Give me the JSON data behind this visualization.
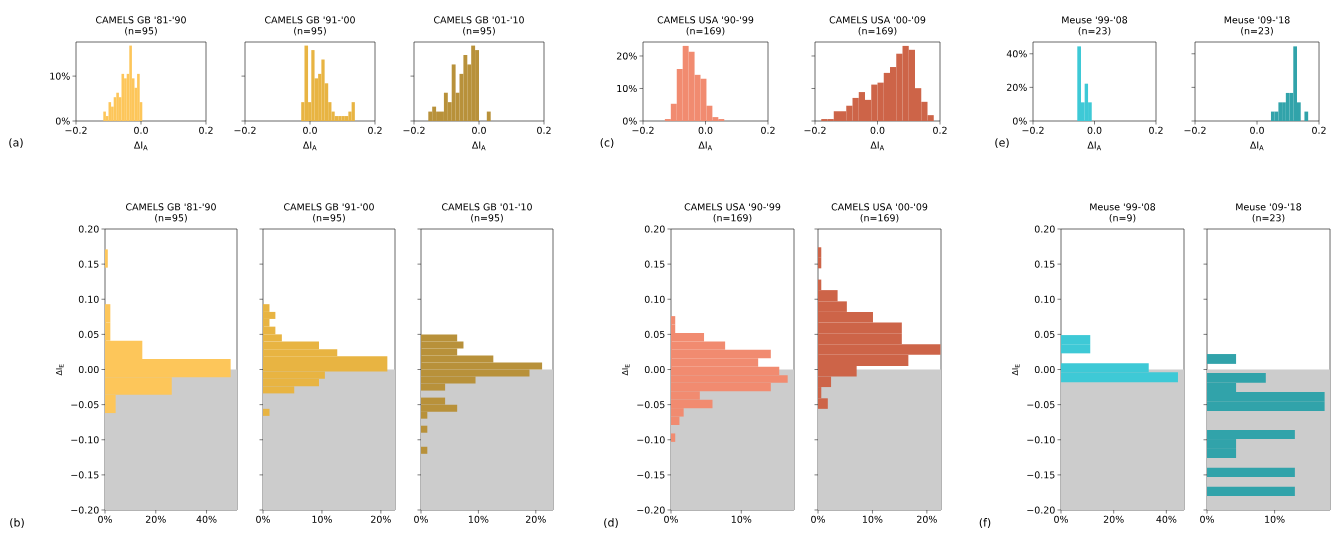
{
  "chart_data": [
    {
      "type": "histogram",
      "title": "CAMELS GB '81-'90",
      "subtitle": "(n=95)",
      "xlabel": "ΔI$_{A}$",
      "annotations": [
        "(a)"
      ],
      "color": "#fdc65a",
      "bins": [
        -0.116,
        -0.108,
        -0.1,
        -0.092,
        -0.084,
        -0.076,
        -0.068,
        -0.06,
        -0.052,
        -0.044,
        -0.036,
        -0.028,
        -0.02,
        -0.012,
        -0.004,
        0.004
      ],
      "values": [
        2.1,
        1.1,
        4.2,
        3.2,
        5.3,
        6.3,
        5.3,
        10.5,
        9.5,
        10.5,
        16.8,
        9.5,
        7.4,
        10.5,
        4.2
      ],
      "xlim": [
        -0.2,
        0.2
      ],
      "ylim": [
        0,
        17.6
      ],
      "xticks": [
        {
          "value": -0.2,
          "label": "−0.2"
        },
        {
          "value": 0,
          "label": "0.0"
        },
        {
          "value": 0.2,
          "label": "0.2"
        }
      ],
      "yticks": [
        {
          "value": 0,
          "label": "0%"
        },
        {
          "value": 10,
          "label": "10%"
        }
      ]
    },
    {
      "type": "histogram",
      "title": "CAMELS GB '91-'00",
      "subtitle": "(n=95)",
      "xlabel": "ΔI$_{A}$",
      "color": "#e8b442",
      "bins": [
        -0.027,
        -0.017,
        -0.006,
        0.004,
        0.014,
        0.025,
        0.035,
        0.045,
        0.056,
        0.066,
        0.076,
        0.087,
        0.097,
        0.107,
        0.118,
        0.128,
        0.138
      ],
      "values": [
        4.2,
        16.8,
        4.2,
        15.8,
        9.5,
        10.5,
        13.7,
        8.4,
        4.2,
        2.1,
        1.1,
        1.1,
        1.1,
        1.1,
        2.1,
        4.2
      ],
      "xlim": [
        -0.2,
        0.2
      ],
      "ylim": [
        0,
        17.6
      ],
      "xticks": [
        {
          "value": -0.2,
          "label": "−0.2"
        },
        {
          "value": 0,
          "label": "0.0"
        },
        {
          "value": 0.2,
          "label": "0.2"
        }
      ],
      "yticks": [
        0,
        10
      ],
      "tick_labels": "x"
    },
    {
      "type": "histogram",
      "title": "CAMELS GB '01-'10",
      "subtitle": "(n=95)",
      "xlabel": "ΔI$_{A}$",
      "color": "#b8913a",
      "bins": [
        -0.156,
        -0.144,
        -0.132,
        -0.12,
        -0.108,
        -0.096,
        -0.084,
        -0.072,
        -0.06,
        -0.048,
        -0.036,
        -0.024,
        -0.012,
        0,
        0.024,
        0.036
      ],
      "values": [
        2.1,
        3.2,
        2.1,
        2.1,
        6.3,
        4.2,
        12.6,
        6.3,
        10.5,
        14.7,
        12.6,
        16.8,
        15.8,
        0,
        2.1
      ],
      "xlim": [
        -0.2,
        0.2
      ],
      "ylim": [
        0,
        17.6
      ],
      "xticks": [
        {
          "value": -0.2,
          "label": "−0.2"
        },
        {
          "value": 0,
          "label": "0.0"
        },
        {
          "value": 0.2,
          "label": "0.2"
        }
      ],
      "yticks": [
        0,
        10
      ],
      "tick_labels": "x"
    },
    {
      "type": "histogram",
      "title": "CAMELS USA '90-'99",
      "subtitle": "(n=169)",
      "xlabel": "ΔI$_{A}$",
      "annotations": [
        "(c)"
      ],
      "color": "#f18b70",
      "bins": [
        -0.13,
        -0.111,
        -0.092,
        -0.073,
        -0.054,
        -0.035,
        -0.016,
        0.003,
        0.022,
        0.041,
        0.06
      ],
      "values": [
        0.6,
        5.3,
        16,
        23.1,
        21.3,
        14.2,
        13,
        4.7,
        1.2,
        0.6
      ],
      "xlim": [
        -0.2,
        0.2
      ],
      "ylim": [
        0,
        24.3
      ],
      "xticks": [
        {
          "value": -0.2,
          "label": "−0.2"
        },
        {
          "value": 0,
          "label": "0.0"
        },
        {
          "value": 0.2,
          "label": "0.2"
        }
      ],
      "yticks": [
        {
          "value": 0,
          "label": "0%"
        },
        {
          "value": 10,
          "label": "10%"
        },
        {
          "value": 20,
          "label": "20%"
        }
      ]
    },
    {
      "type": "histogram",
      "title": "CAMELS USA '00-'09",
      "subtitle": "(n=169)",
      "xlabel": "ΔI$_{A}$",
      "color": "#cd6448",
      "bins": [
        -0.18,
        -0.16,
        -0.14,
        -0.12,
        -0.1,
        -0.08,
        -0.06,
        -0.04,
        -0.02,
        0,
        0.02,
        0.04,
        0.06,
        0.08,
        0.1,
        0.12,
        0.14,
        0.16,
        0.18
      ],
      "values": [
        0.6,
        0.6,
        3,
        3,
        4.7,
        7.1,
        8.9,
        6.5,
        11.2,
        11.8,
        14.8,
        16.6,
        20.7,
        23.1,
        21.9,
        10.1,
        5.9,
        1.8
      ],
      "xlim": [
        -0.2,
        0.2
      ],
      "ylim": [
        0,
        24.3
      ],
      "xticks": [
        {
          "value": -0.2,
          "label": "−0.2"
        },
        {
          "value": 0,
          "label": "0.0"
        },
        {
          "value": 0.2,
          "label": "0.2"
        }
      ],
      "yticks": [
        0,
        10,
        20
      ],
      "tick_labels": "x"
    },
    {
      "type": "histogram",
      "title": "Meuse '99-'08",
      "subtitle": "(n=23)",
      "xlabel": "ΔI$_{A}$",
      "annotations": [
        "(e)"
      ],
      "color": "#3ec9d6",
      "bins": [
        -0.056,
        -0.044,
        -0.032,
        -0.021,
        -0.009
      ],
      "values": [
        44.4,
        11.1,
        22.2,
        11.1
      ],
      "xlim": [
        -0.2,
        0.2
      ],
      "ylim": [
        0,
        47
      ],
      "xticks": [
        {
          "value": -0.2,
          "label": "−0.2"
        },
        {
          "value": 0,
          "label": "0.0"
        },
        {
          "value": 0.2,
          "label": "0.2"
        }
      ],
      "yticks": [
        {
          "value": 0,
          "label": "0%"
        },
        {
          "value": 20,
          "label": "20%"
        },
        {
          "value": 40,
          "label": "40%"
        }
      ]
    },
    {
      "type": "histogram",
      "title": "Meuse '09-'18",
      "subtitle": "(n=23)",
      "xlabel": "ΔI$_{A}$",
      "color": "#31a3aa",
      "bins": [
        0.045,
        0.057,
        0.069,
        0.081,
        0.093,
        0.105,
        0.117,
        0.129,
        0.141,
        0.153,
        0.165
      ],
      "values": [
        5.6,
        5.6,
        11.1,
        11.1,
        16.7,
        16.7,
        44.4,
        11.1,
        0,
        5.6
      ],
      "xlim": [
        -0.2,
        0.2
      ],
      "ylim": [
        0,
        47
      ],
      "xticks": [
        {
          "value": -0.2,
          "label": "−0.2"
        },
        {
          "value": 0,
          "label": "0.0"
        },
        {
          "value": 0.2,
          "label": "0.2"
        }
      ],
      "yticks": [
        0,
        20,
        40
      ],
      "tick_labels": "x"
    },
    {
      "type": "histogram",
      "orientation": "horizontal",
      "title": "CAMELS GB '81-'90",
      "subtitle": "(n=95)",
      "ylabel": "ΔI$_{E}$",
      "annotations": [
        "(b)"
      ],
      "color": "#fdc65a",
      "bins": [
        -0.062,
        -0.036,
        -0.011,
        0.015,
        0.041,
        0.067,
        0.093,
        0.145,
        0.171
      ],
      "values": [
        4.2,
        26.3,
        49.5,
        14.7,
        2.1,
        2.1,
        0,
        1.1
      ],
      "bands": [
        {
          "axis": "y",
          "from": -0.2,
          "to": 0,
          "color": "#cccccc"
        }
      ],
      "xlim": [
        0,
        52
      ],
      "ylim": [
        -0.2,
        0.2
      ],
      "xticks": [
        {
          "value": 0,
          "label": "0%"
        },
        {
          "value": 20,
          "label": "20%"
        },
        {
          "value": 40,
          "label": "40%"
        }
      ],
      "yticks": [
        {
          "value": 0.2,
          "label": "0.20"
        },
        {
          "value": 0.15,
          "label": "0.15"
        },
        {
          "value": 0.1,
          "label": "0.10"
        },
        {
          "value": 0.05,
          "label": "0.05"
        },
        {
          "value": 0,
          "label": "0.00"
        },
        {
          "value": -0.05,
          "label": "−0.05"
        },
        {
          "value": -0.1,
          "label": "−0.10"
        },
        {
          "value": -0.15,
          "label": "−0.15"
        },
        {
          "value": -0.2,
          "label": "−0.20"
        }
      ]
    },
    {
      "type": "histogram",
      "orientation": "horizontal",
      "title": "CAMELS GB '91-'00",
      "subtitle": "(n=95)",
      "color": "#e8b442",
      "bins": [
        -0.066,
        -0.056,
        -0.034,
        -0.024,
        -0.013,
        -0.003,
        0.008,
        0.019,
        0.029,
        0.04,
        0.05,
        0.061,
        0.072,
        0.082,
        0.093
      ],
      "values": [
        1.1,
        0,
        5.3,
        9.5,
        10.5,
        21.1,
        21.1,
        12.6,
        9.5,
        3.2,
        2.1,
        1.1,
        2.1,
        1.1
      ],
      "bands": [
        {
          "axis": "y",
          "from": -0.2,
          "to": 0,
          "color": "#cccccc"
        }
      ],
      "xlim": [
        0,
        22.4
      ],
      "ylim": [
        -0.2,
        0.2
      ],
      "xticks": [
        {
          "value": 0,
          "label": "0%"
        },
        {
          "value": 10,
          "label": "10%"
        },
        {
          "value": 20,
          "label": "20%"
        }
      ],
      "yticks": [
        0.2,
        0.15,
        0.1,
        0.05,
        0,
        -0.05,
        -0.1,
        -0.15,
        -0.2
      ],
      "tick_labels": "x"
    },
    {
      "type": "histogram",
      "orientation": "horizontal",
      "title": "CAMELS GB '01-'10",
      "subtitle": "(n=95)",
      "color": "#b8913a",
      "bins": [
        -0.12,
        -0.11,
        -0.09,
        -0.08,
        -0.07,
        -0.06,
        -0.05,
        -0.04,
        -0.03,
        -0.02,
        -0.01,
        0,
        0.01,
        0.02,
        0.03,
        0.04,
        0.05
      ],
      "values": [
        1.1,
        0,
        1.1,
        0,
        1.1,
        6.3,
        4.2,
        0,
        4.2,
        9.5,
        18.9,
        21.1,
        12.6,
        6.3,
        7.4,
        6.3
      ],
      "bands": [
        {
          "axis": "y",
          "from": -0.2,
          "to": 0,
          "color": "#cccccc"
        }
      ],
      "xlim": [
        0,
        23
      ],
      "ylim": [
        -0.2,
        0.2
      ],
      "xticks": [
        {
          "value": 0,
          "label": "0%"
        },
        {
          "value": 10,
          "label": "10%"
        },
        {
          "value": 20,
          "label": "20%"
        }
      ],
      "yticks": [
        0.2,
        0.15,
        0.1,
        0.05,
        0,
        -0.05,
        -0.1,
        -0.15,
        -0.2
      ],
      "tick_labels": "x"
    },
    {
      "type": "histogram",
      "orientation": "horizontal",
      "title": "CAMELS USA '90-'99",
      "subtitle": "(n=169)",
      "ylabel": "ΔI$_{E}$",
      "annotations": [
        "(d)"
      ],
      "color": "#f18b70",
      "bins": [
        -0.103,
        -0.091,
        -0.079,
        -0.067,
        -0.055,
        -0.043,
        -0.031,
        -0.019,
        -0.008,
        0.004,
        0.016,
        0.028,
        0.04,
        0.052,
        0.064,
        0.076
      ],
      "values": [
        0.6,
        0,
        1.2,
        1.8,
        5.9,
        4.1,
        14.2,
        16.6,
        15.4,
        12.4,
        14.2,
        7.7,
        4.7,
        0.6,
        0.6
      ],
      "bands": [
        {
          "axis": "y",
          "from": -0.2,
          "to": 0,
          "color": "#cccccc"
        }
      ],
      "xlim": [
        0,
        17.5
      ],
      "ylim": [
        -0.2,
        0.2
      ],
      "xticks": [
        {
          "value": 0,
          "label": "0%"
        },
        {
          "value": 10,
          "label": "10%"
        }
      ],
      "yticks": [
        {
          "value": 0.2,
          "label": "0.20"
        },
        {
          "value": 0.15,
          "label": "0.15"
        },
        {
          "value": 0.1,
          "label": "0.10"
        },
        {
          "value": 0.05,
          "label": "0.05"
        },
        {
          "value": 0,
          "label": "0.00"
        },
        {
          "value": -0.05,
          "label": "−0.05"
        },
        {
          "value": -0.1,
          "label": "−0.10"
        },
        {
          "value": -0.15,
          "label": "−0.15"
        },
        {
          "value": -0.2,
          "label": "−0.20"
        }
      ]
    },
    {
      "type": "histogram",
      "orientation": "horizontal",
      "title": "CAMELS USA '00-'09",
      "subtitle": "(n=169)",
      "color": "#cd6448",
      "bins": [
        -0.056,
        -0.041,
        -0.025,
        -0.01,
        0.005,
        0.021,
        0.036,
        0.051,
        0.067,
        0.082,
        0.097,
        0.113,
        0.128,
        0.144,
        0.159,
        0.174
      ],
      "values": [
        1.8,
        0.6,
        2.4,
        7.1,
        16.6,
        22.5,
        15.4,
        15.4,
        10.1,
        5.3,
        3.6,
        0.6,
        0,
        0.6,
        0.6
      ],
      "bands": [
        {
          "axis": "y",
          "from": -0.2,
          "to": 0,
          "color": "#cccccc"
        }
      ],
      "xlim": [
        0,
        22.6
      ],
      "ylim": [
        -0.2,
        0.2
      ],
      "xticks": [
        {
          "value": 0,
          "label": "0%"
        },
        {
          "value": 10,
          "label": "10%"
        },
        {
          "value": 20,
          "label": "20%"
        }
      ],
      "yticks": [
        0.2,
        0.15,
        0.1,
        0.05,
        0,
        -0.05,
        -0.1,
        -0.15,
        -0.2
      ],
      "tick_labels": "x"
    },
    {
      "type": "histogram",
      "orientation": "horizontal",
      "title": "Meuse '99-'08",
      "subtitle": "(n=9)",
      "ylabel": "ΔI$_{E}$",
      "annotations": [
        "(f)"
      ],
      "color": "#3ec9d6",
      "bins": [
        -0.018,
        -0.004,
        0.009,
        0.023,
        0.036,
        0.049
      ],
      "values": [
        44.4,
        33.3,
        0,
        11.1,
        11.1
      ],
      "bands": [
        {
          "axis": "y",
          "from": -0.2,
          "to": 0,
          "color": "#cccccc"
        }
      ],
      "xlim": [
        0,
        46.7
      ],
      "ylim": [
        -0.2,
        0.2
      ],
      "xticks": [
        {
          "value": 0,
          "label": "0%"
        },
        {
          "value": 20,
          "label": "20%"
        },
        {
          "value": 40,
          "label": "40%"
        }
      ],
      "yticks": [
        {
          "value": 0.2,
          "label": "0.20"
        },
        {
          "value": 0.15,
          "label": "0.15"
        },
        {
          "value": 0.1,
          "label": "0.10"
        },
        {
          "value": 0.05,
          "label": "0.05"
        },
        {
          "value": 0,
          "label": "0.00"
        },
        {
          "value": -0.05,
          "label": "−0.05"
        },
        {
          "value": -0.1,
          "label": "−0.10"
        },
        {
          "value": -0.15,
          "label": "−0.15"
        },
        {
          "value": -0.2,
          "label": "−0.20"
        }
      ]
    },
    {
      "type": "histogram",
      "orientation": "horizontal",
      "title": "Meuse '09-'18",
      "subtitle": "(n=23)",
      "color": "#31a3aa",
      "bins": [
        -0.18,
        -0.167,
        -0.153,
        -0.14,
        -0.126,
        -0.113,
        -0.099,
        -0.086,
        -0.059,
        -0.046,
        -0.032,
        -0.019,
        -0.005,
        0.008,
        0.022
      ],
      "values": [
        13,
        0,
        13,
        0,
        4.3,
        4.3,
        13,
        0,
        17.4,
        17.4,
        4.3,
        8.7,
        0,
        4.3
      ],
      "bands": [
        {
          "axis": "y",
          "from": -0.2,
          "to": 0,
          "color": "#cccccc"
        }
      ],
      "xlim": [
        0,
        18.2
      ],
      "ylim": [
        -0.2,
        0.2
      ],
      "xticks": [
        {
          "value": 0,
          "label": "0%"
        },
        {
          "value": 10,
          "label": "10%"
        }
      ],
      "yticks": [
        0.2,
        0.15,
        0.1,
        0.05,
        0,
        -0.05,
        -0.1,
        -0.15,
        -0.2
      ],
      "tick_labels": "x"
    }
  ]
}
